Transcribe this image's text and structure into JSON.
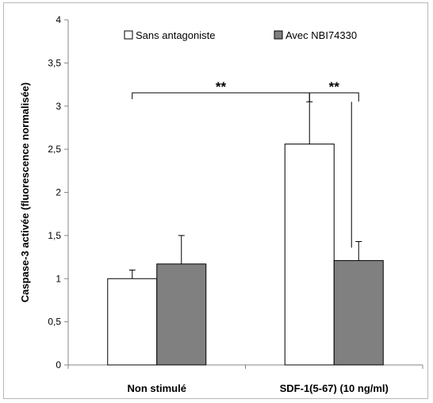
{
  "chart_data": {
    "type": "bar",
    "categories": [
      "Non stimulé",
      "SDF-1(5-67) (10 ng/ml)"
    ],
    "series": [
      {
        "name": "Sans antagoniste",
        "values": [
          1.0,
          2.56
        ],
        "errors": [
          0.1,
          0.49
        ],
        "color": "#ffffff"
      },
      {
        "name": "Avec NBI74330",
        "values": [
          1.17,
          1.21
        ],
        "errors": [
          0.33,
          0.22
        ],
        "color": "#808080"
      }
    ],
    "ylabel": "Caspase-3 activée (fluorescence normalisée)",
    "xlabel": "",
    "ylim": [
      0,
      4
    ],
    "yticks": [
      "0",
      "0,5",
      "1",
      "1,5",
      "2",
      "2,5",
      "3",
      "3,5",
      "4"
    ],
    "grid": false,
    "legend_position": "top",
    "significance": [
      {
        "label": "**",
        "between": "Non stimulé vs SDF-1(5-67) (10 ng/ml), Sans antagoniste"
      },
      {
        "label": "**",
        "between": "SDF-1(5-67) (10 ng/ml): Sans antagoniste vs Avec NBI74330"
      }
    ]
  }
}
